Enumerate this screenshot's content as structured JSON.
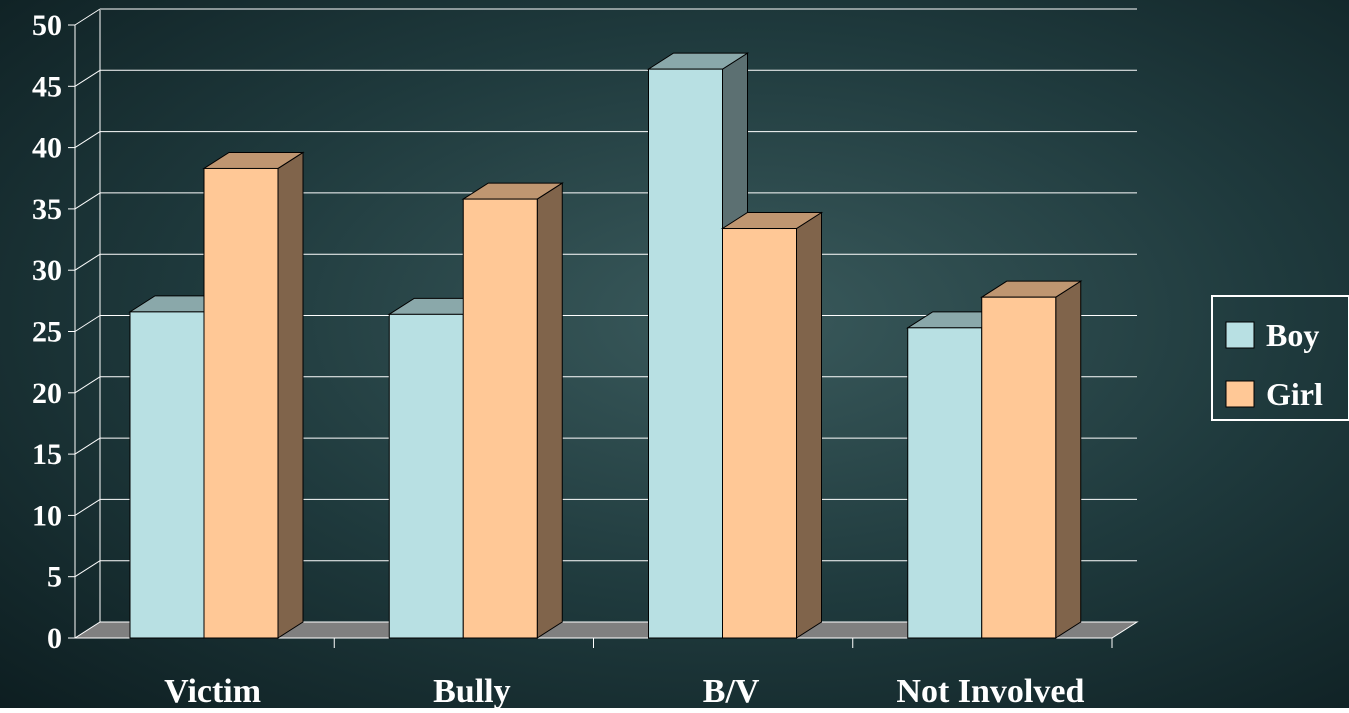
{
  "chart_data": {
    "type": "bar3d",
    "categories": [
      "Victim",
      "Bully",
      "B/V",
      "Not Involved"
    ],
    "series": [
      {
        "name": "Boy",
        "color": "#b8e0e3",
        "values": [
          26.6,
          26.4,
          46.4,
          25.3
        ]
      },
      {
        "name": "Girl",
        "color": "#ffc896",
        "values": [
          38.3,
          35.8,
          33.4,
          27.8
        ]
      }
    ],
    "ylim": [
      0,
      50
    ],
    "yticks": [
      0,
      5,
      10,
      15,
      20,
      25,
      30,
      35,
      40,
      45,
      50
    ],
    "grid": true,
    "legend": "right"
  }
}
